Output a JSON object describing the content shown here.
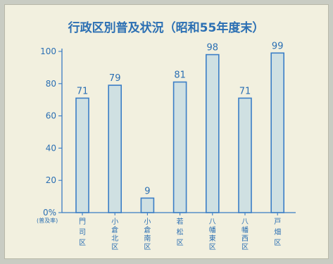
{
  "chart_data": {
    "type": "bar",
    "title": "行政区別普及状況（昭和55年度末）",
    "categories": [
      "門司区",
      "小倉北区",
      "小倉南区",
      "若松区",
      "八幡東区",
      "八幡西区",
      "戸畑区"
    ],
    "values": [
      71,
      79,
      9,
      81,
      98,
      71,
      99
    ],
    "ylim": [
      0,
      100
    ],
    "yticks": [
      "0%",
      "20",
      "40",
      "60",
      "80",
      "100"
    ],
    "ytick_values": [
      0,
      20,
      40,
      60,
      80,
      100
    ],
    "ylabel": "(普及率)",
    "xlabel": "",
    "grid": false,
    "legend": "none",
    "colors": {
      "accent": "#2b6fb3",
      "bar_fill": "#cfe0e2",
      "bar_stroke": "#3b7ec6",
      "background": "#f2f0df"
    }
  }
}
